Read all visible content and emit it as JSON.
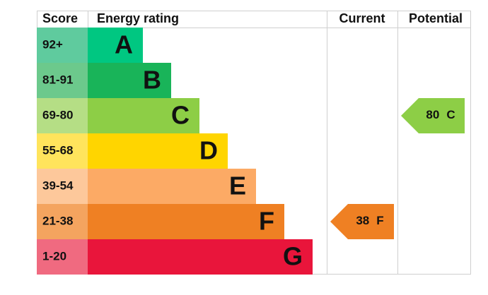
{
  "header": {
    "score": "Score",
    "rating": "Energy rating",
    "current": "Current",
    "potential": "Potential"
  },
  "bands": [
    {
      "score": "92+",
      "letter": "A",
      "color": "#00c781",
      "score_color": "#5fcb9e"
    },
    {
      "score": "81-91",
      "letter": "B",
      "color": "#19b459",
      "score_color": "#6cc98c"
    },
    {
      "score": "69-80",
      "letter": "C",
      "color": "#8dce46",
      "score_color": "#b5de85"
    },
    {
      "score": "55-68",
      "letter": "D",
      "color": "#ffd500",
      "score_color": "#ffe45c"
    },
    {
      "score": "39-54",
      "letter": "E",
      "color": "#fcaa65",
      "score_color": "#fdc89b"
    },
    {
      "score": "21-38",
      "letter": "F",
      "color": "#ef8023",
      "score_color": "#f4a45f"
    },
    {
      "score": "1-20",
      "letter": "G",
      "color": "#e9153b",
      "score_color": "#f06a80"
    }
  ],
  "current": {
    "score": "38",
    "rating": "F",
    "color": "#ef8023"
  },
  "potential": {
    "score": "80",
    "rating": "C",
    "color": "#8dce46"
  }
}
